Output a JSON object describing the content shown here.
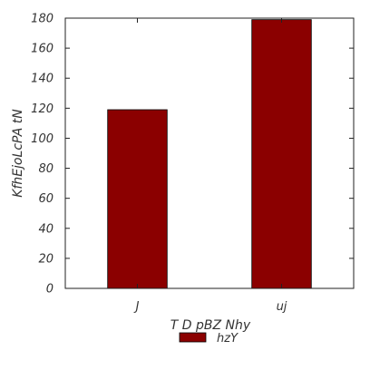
{
  "chart_data": {
    "type": "bar",
    "categories": [
      "J",
      "uj"
    ],
    "series": [
      {
        "name": "hzY",
        "values": [
          119,
          179
        ],
        "color": "#8b0000"
      }
    ],
    "xlabel": "T D  pBZ Nhy",
    "ylabel": "KfhEjoLcPA tN",
    "ylim": [
      0,
      180
    ],
    "yticks": [
      "0",
      "20",
      "40",
      "60",
      "80",
      "100",
      "120",
      "140",
      "160",
      "180"
    ],
    "grid": false,
    "legend_position": "bottom-center"
  }
}
